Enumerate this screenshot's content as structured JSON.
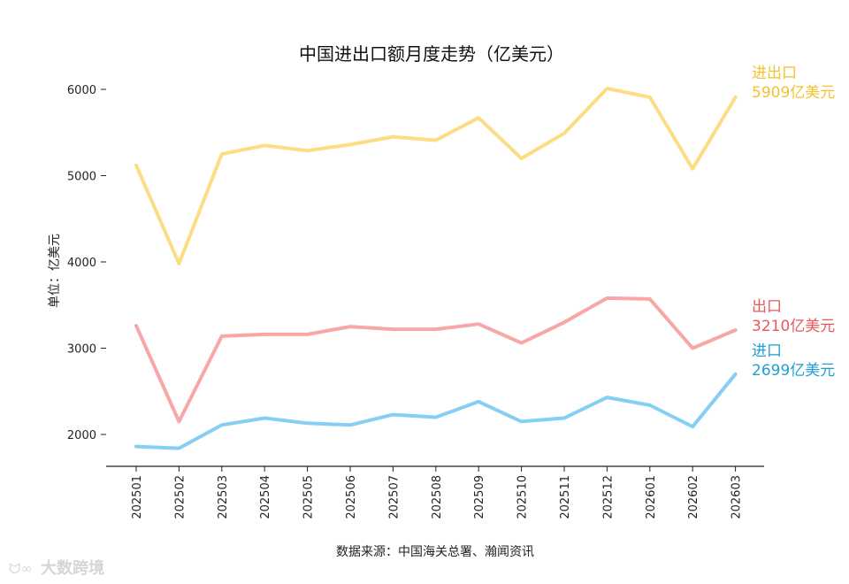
{
  "chart_data": {
    "type": "line",
    "title": "中国进出口额月度走势（亿美元）",
    "xlabel": "",
    "ylabel": "单位：亿美元",
    "source": "数据来源：中国海关总署、瀚闻资讯",
    "watermark": "大数跨境",
    "categories": [
      "202501",
      "202502",
      "202503",
      "202504",
      "202505",
      "202506",
      "202507",
      "202508",
      "202509",
      "202510",
      "202511",
      "202512",
      "202601",
      "202602",
      "202603"
    ],
    "y_ticks": [
      2000,
      3000,
      4000,
      5000,
      6000
    ],
    "ylim": [
      1640,
      6280
    ],
    "grid": false,
    "legend": "none",
    "series": [
      {
        "name": "进出口",
        "color": "#fcdd83",
        "label_color": "#f3c22c",
        "end_label": "5909亿美元",
        "values": [
          5120,
          3980,
          5250,
          5350,
          5290,
          5360,
          5450,
          5410,
          5670,
          5200,
          5490,
          6010,
          5910,
          5080,
          5909
        ]
      },
      {
        "name": "出口",
        "color": "#f7a7a7",
        "label_color": "#e8585b",
        "end_label": "3210亿美元",
        "values": [
          3260,
          2150,
          3140,
          3160,
          3160,
          3250,
          3220,
          3220,
          3280,
          3060,
          3300,
          3580,
          3570,
          3000,
          3210
        ]
      },
      {
        "name": "进口",
        "color": "#86cff2",
        "label_color": "#1f9fd4",
        "end_label": "2699亿美元",
        "values": [
          1860,
          1840,
          2110,
          2190,
          2130,
          2110,
          2230,
          2200,
          2380,
          2150,
          2190,
          2430,
          2340,
          2090,
          2699
        ]
      }
    ]
  }
}
